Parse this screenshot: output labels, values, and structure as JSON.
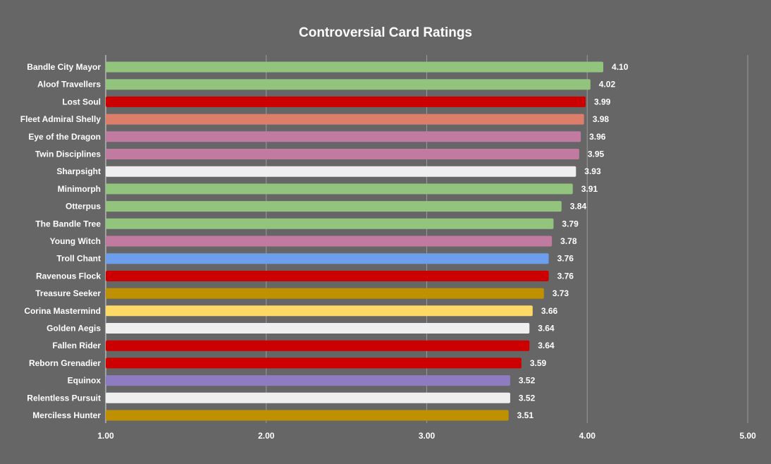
{
  "chart_data": {
    "type": "bar",
    "orientation": "horizontal",
    "title": "Controversial Card Ratings",
    "xlabel": "",
    "ylabel": "",
    "xlim": [
      1.0,
      5.0
    ],
    "ticks": [
      "1.00",
      "2.00",
      "3.00",
      "4.00",
      "5.00"
    ],
    "tick_values": [
      1,
      2,
      3,
      4,
      5
    ],
    "grid": true,
    "categories": [
      "Bandle City Mayor",
      "Aloof Travellers",
      "Lost Soul",
      "Fleet Admiral Shelly",
      "Eye of the Dragon",
      "Twin Disciplines",
      "Sharpsight",
      "Minimorph",
      "Otterpus",
      "The Bandle Tree",
      "Young Witch",
      "Troll Chant",
      "Ravenous Flock",
      "Treasure Seeker",
      "Corina Mastermind",
      "Golden Aegis",
      "Fallen Rider",
      "Reborn Grenadier",
      "Equinox",
      "Relentless Pursuit",
      "Merciless Hunter"
    ],
    "values": [
      4.1,
      4.02,
      3.99,
      3.98,
      3.96,
      3.95,
      3.93,
      3.91,
      3.84,
      3.79,
      3.78,
      3.76,
      3.76,
      3.73,
      3.66,
      3.64,
      3.64,
      3.59,
      3.52,
      3.52,
      3.51
    ],
    "value_labels": [
      "4.10",
      "4.02",
      "3.99",
      "3.98",
      "3.96",
      "3.95",
      "3.93",
      "3.91",
      "3.84",
      "3.79",
      "3.78",
      "3.76",
      "3.76",
      "3.73",
      "3.66",
      "3.64",
      "3.64",
      "3.59",
      "3.52",
      "3.52",
      "3.51"
    ],
    "colors": [
      "#93c47d",
      "#93c47d",
      "#cc0000",
      "#dd7e6b",
      "#c27ba0",
      "#c27ba0",
      "#efefef",
      "#93c47d",
      "#93c47d",
      "#93c47d",
      "#c27ba0",
      "#6d9eeb",
      "#cc0000",
      "#bf9000",
      "#ffd966",
      "#efefef",
      "#cc0000",
      "#cc0000",
      "#8e7cc3",
      "#efefef",
      "#bf9000"
    ]
  }
}
